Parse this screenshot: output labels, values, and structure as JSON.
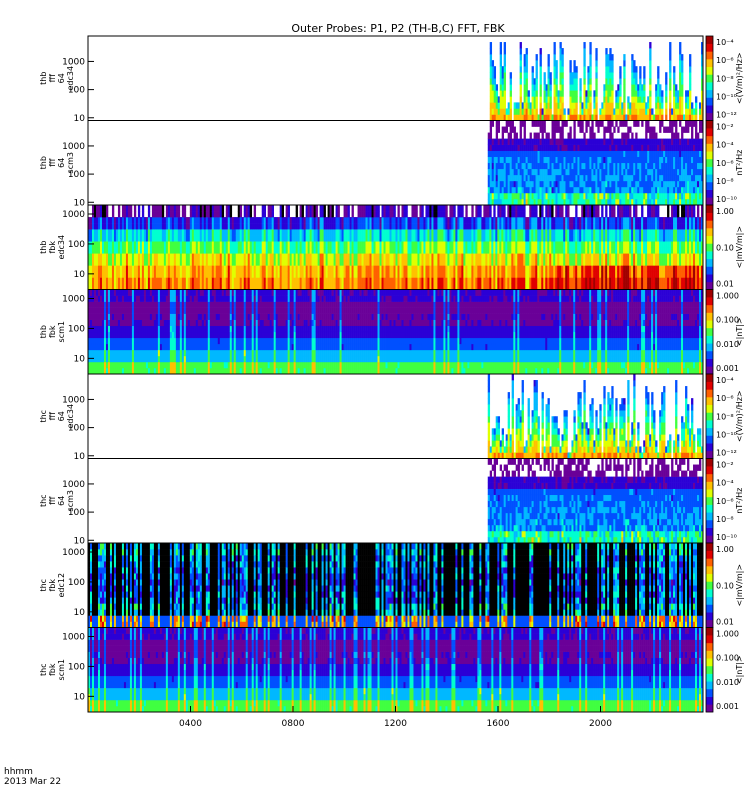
{
  "title": "Outer Probes: P1, P2 (TH-B,C) FFT, FBK",
  "footer": {
    "time_format_label": "hhmm",
    "date_label": "2013 Mar 22"
  },
  "x_axis": {
    "range_hours": [
      0,
      24
    ],
    "ticks": [
      {
        "hour": 4,
        "label": "0400"
      },
      {
        "hour": 8,
        "label": "0800"
      },
      {
        "hour": 12,
        "label": "1200"
      },
      {
        "hour": 16,
        "label": "1600"
      },
      {
        "hour": 20,
        "label": "2000"
      }
    ]
  },
  "colors": {
    "background": "#ffffff",
    "axis": "#000000",
    "gap": "#ffffff"
  },
  "colormap": [
    "#ffffff",
    "#6a0098",
    "#2b00d6",
    "#0050ff",
    "#00b8ff",
    "#00ffd0",
    "#40ff40",
    "#e0ff00",
    "#ffc000",
    "#ff6000",
    "#e00000",
    "#a00000"
  ],
  "chart_data": [
    {
      "type": "heatmap",
      "probe": "thb",
      "product": "fff",
      "band": "64",
      "sensor": "edc34",
      "ylabel_lines": [
        "thb",
        "fff",
        "64",
        "edc34"
      ],
      "y_scale": "log",
      "ylim_hz": [
        8,
        8000
      ],
      "yticks": [
        "10",
        "100",
        "1000"
      ],
      "data_start_hour": 15.6,
      "colorbar": {
        "ticks": [
          "10⁻⁴",
          "10⁻⁶",
          "10⁻⁸",
          "10⁻¹⁰",
          "10⁻¹²"
        ],
        "label": "<(V/m)²/Hz>",
        "scale": "log"
      },
      "style": "spiky"
    },
    {
      "type": "heatmap",
      "probe": "thb",
      "product": "fff",
      "band": "64",
      "sensor": "scm3",
      "ylabel_lines": [
        "thb",
        "fff",
        "64",
        "scm3"
      ],
      "y_scale": "log",
      "ylim_hz": [
        8,
        8000
      ],
      "yticks": [
        "10",
        "100",
        "1000"
      ],
      "data_start_hour": 15.6,
      "colorbar": {
        "ticks": [
          "10⁻²",
          "10⁻⁴",
          "10⁻⁶",
          "10⁻⁸",
          "10⁻¹⁰"
        ],
        "label": "nT²/Hz",
        "scale": "log"
      },
      "style": "banded"
    },
    {
      "type": "heatmap",
      "probe": "thb",
      "product": "fbk",
      "sensor": "edc34",
      "ylabel_lines": [
        "thb",
        "fbk",
        "edc34"
      ],
      "y_scale": "log",
      "ylim_hz": [
        3,
        2000
      ],
      "yticks": [
        "10",
        "100",
        "1000"
      ],
      "data_start_hour": 0,
      "colorbar": {
        "ticks": [
          "1.00",
          "0.10",
          "0.01"
        ],
        "label": "<|mV/m|>",
        "scale": "log"
      },
      "style": "fbk_e"
    },
    {
      "type": "heatmap",
      "probe": "thb",
      "product": "fbk",
      "sensor": "scm1",
      "ylabel_lines": [
        "thb",
        "fbk",
        "scm1"
      ],
      "y_scale": "log",
      "ylim_hz": [
        3,
        2000
      ],
      "yticks": [
        "10",
        "100",
        "1000"
      ],
      "data_start_hour": 0,
      "colorbar": {
        "ticks": [
          "1.000",
          "0.100",
          "0.010",
          "0.001"
        ],
        "label": "<|nT|>",
        "scale": "log"
      },
      "style": "fbk_b"
    },
    {
      "type": "heatmap",
      "probe": "thc",
      "product": "fff",
      "band": "64",
      "sensor": "edc34",
      "ylabel_lines": [
        "thc",
        "fff",
        "64",
        "edc34"
      ],
      "y_scale": "log",
      "ylim_hz": [
        8,
        8000
      ],
      "yticks": [
        "10",
        "100",
        "1000"
      ],
      "data_start_hour": 15.6,
      "colorbar": {
        "ticks": [
          "10⁻⁴",
          "10⁻⁶",
          "10⁻⁸",
          "10⁻¹⁰",
          "10⁻¹²"
        ],
        "label": "<(V/m)²/Hz>",
        "scale": "log"
      },
      "style": "spiky"
    },
    {
      "type": "heatmap",
      "probe": "thc",
      "product": "fff",
      "band": "64",
      "sensor": "scm3",
      "ylabel_lines": [
        "thc",
        "fff",
        "64",
        "scm3"
      ],
      "y_scale": "log",
      "ylim_hz": [
        8,
        8000
      ],
      "yticks": [
        "10",
        "100",
        "1000"
      ],
      "data_start_hour": 15.6,
      "colorbar": {
        "ticks": [
          "10⁻²",
          "10⁻⁴",
          "10⁻⁶",
          "10⁻⁸",
          "10⁻¹⁰"
        ],
        "label": "nT²/Hz",
        "scale": "log"
      },
      "style": "banded"
    },
    {
      "type": "heatmap",
      "probe": "thc",
      "product": "fbk",
      "sensor": "edc12",
      "ylabel_lines": [
        "thc",
        "fbk",
        "edc12"
      ],
      "y_scale": "log",
      "ylim_hz": [
        3,
        2000
      ],
      "yticks": [
        "10",
        "100",
        "1000"
      ],
      "data_start_hour": 0,
      "colorbar": {
        "ticks": [
          "1.00",
          "0.10",
          "0.01"
        ],
        "label": "<|mV/m|>",
        "scale": "log"
      },
      "style": "fbk_e_dark"
    },
    {
      "type": "heatmap",
      "probe": "thc",
      "product": "fbk",
      "sensor": "scm1",
      "ylabel_lines": [
        "thc",
        "fbk",
        "scm1"
      ],
      "y_scale": "log",
      "ylim_hz": [
        3,
        2000
      ],
      "yticks": [
        "10",
        "100",
        "1000"
      ],
      "data_start_hour": 0,
      "colorbar": {
        "ticks": [
          "1.000",
          "0.100",
          "0.010",
          "0.001"
        ],
        "label": "<|nT|>",
        "scale": "log"
      },
      "style": "fbk_b"
    }
  ]
}
